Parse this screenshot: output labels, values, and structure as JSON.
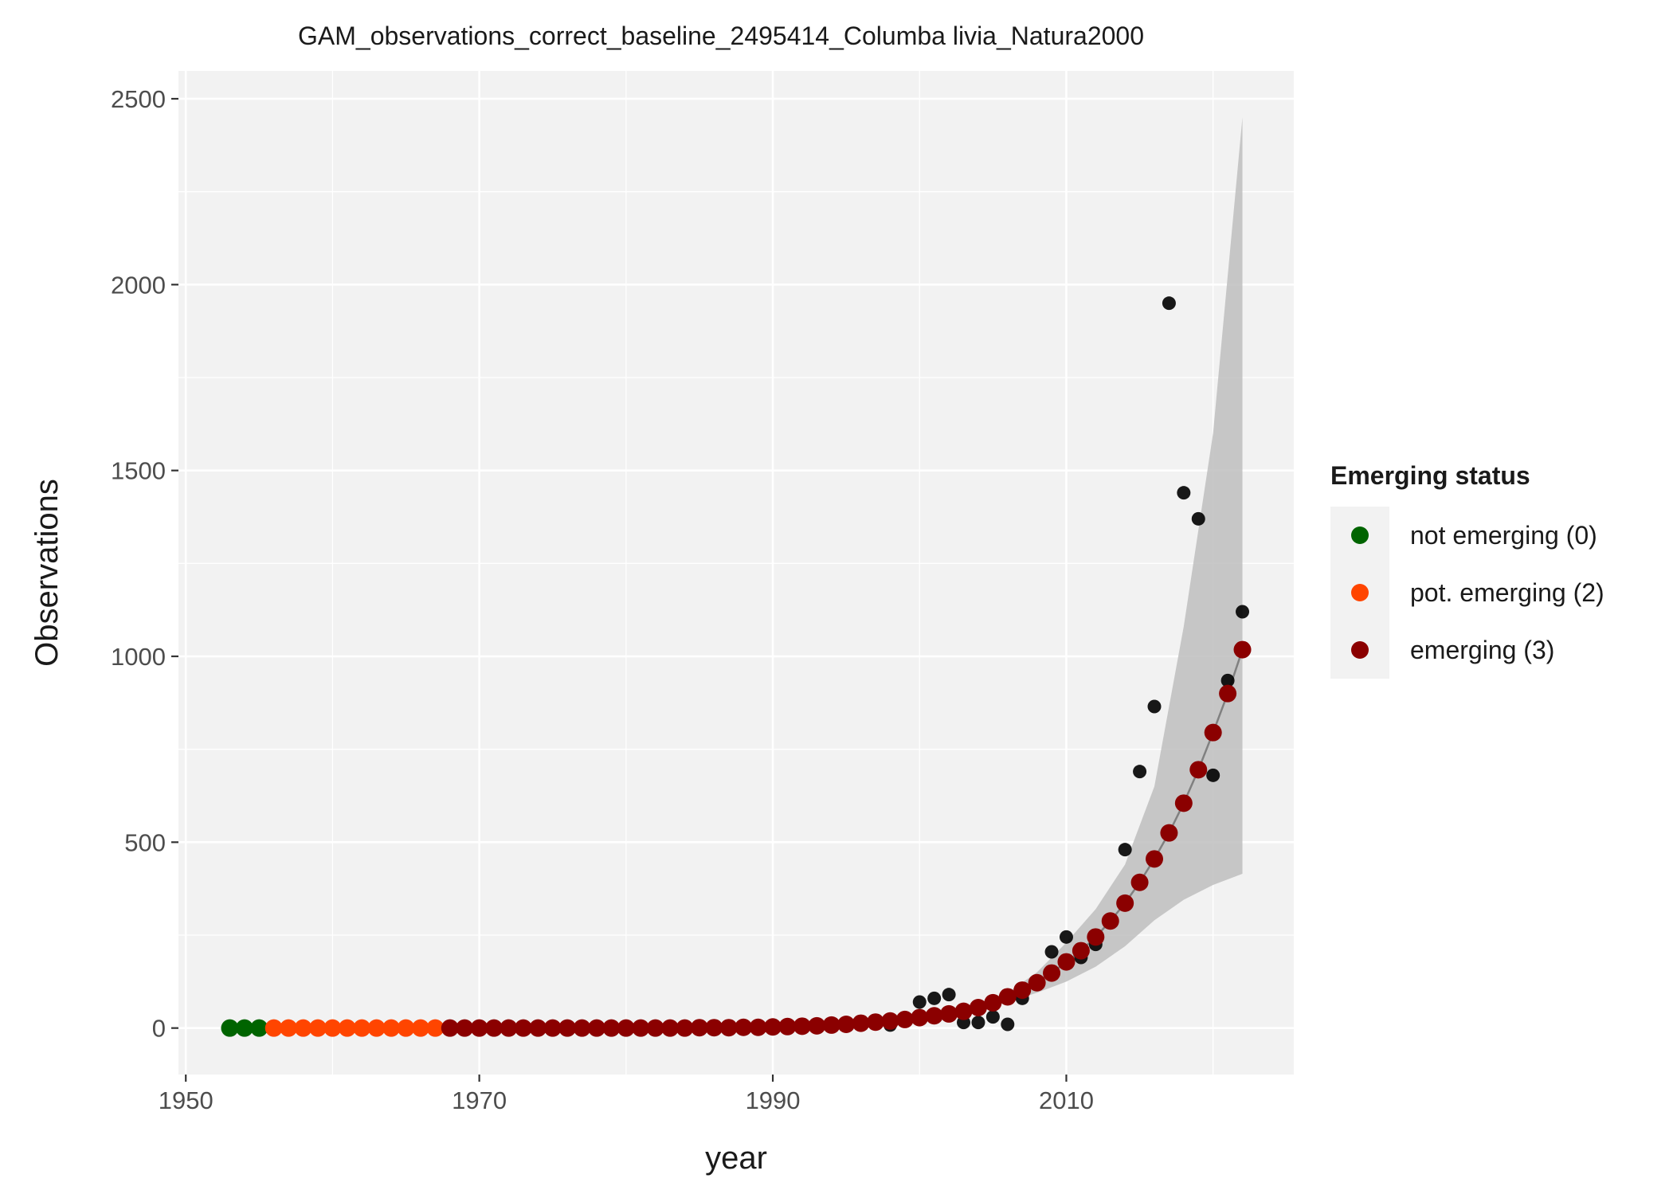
{
  "chart_data": {
    "type": "scatter",
    "title": "GAM_observations_correct_baseline_2495414_Columba livia_Natura2000",
    "xlabel": "year",
    "ylabel": "Observations",
    "xlim": [
      1949.5,
      2025.5
    ],
    "ylim": [
      -125,
      2575
    ],
    "x_ticks": [
      1950,
      1970,
      1990,
      2010
    ],
    "x_tick_labels": [
      "1950",
      "1970",
      "1990",
      "2010"
    ],
    "y_ticks": [
      0,
      500,
      1000,
      1500,
      2000,
      2500
    ],
    "y_tick_labels": [
      "0",
      "500",
      "1000",
      "1500",
      "2000",
      "2500"
    ],
    "grid": true,
    "legend": {
      "title": "Emerging status",
      "position": "right",
      "entries": [
        {
          "label": "not emerging (0)",
          "color": "#006400"
        },
        {
          "label": "pot. emerging (2)",
          "color": "#FF4500"
        },
        {
          "label": "emerging (3)",
          "color": "#8B0000"
        }
      ]
    },
    "colors": {
      "panel_bg": "#F2F2F2",
      "grid": "#FFFFFF",
      "ribbon": "#BEBEBE",
      "fit_line": "#808080",
      "observed": "#000000"
    },
    "observed": {
      "name": "observations",
      "x": [
        1998,
        2000,
        2001,
        2002,
        2003,
        2004,
        2005,
        2006,
        2007,
        2009,
        2010,
        2011,
        2012,
        2014,
        2015,
        2016,
        2017,
        2018,
        2019,
        2020,
        2021,
        2022
      ],
      "y": [
        8,
        70,
        80,
        90,
        15,
        15,
        30,
        10,
        80,
        205,
        245,
        190,
        225,
        480,
        690,
        865,
        1950,
        1440,
        1370,
        680,
        935,
        1120
      ]
    },
    "fit": {
      "x": [
        1953,
        1954,
        1955,
        1956,
        1957,
        1958,
        1959,
        1960,
        1961,
        1962,
        1963,
        1964,
        1965,
        1966,
        1967,
        1968,
        1969,
        1970,
        1971,
        1972,
        1973,
        1974,
        1975,
        1976,
        1977,
        1978,
        1979,
        1980,
        1981,
        1982,
        1983,
        1984,
        1985,
        1986,
        1987,
        1988,
        1989,
        1990,
        1991,
        1992,
        1993,
        1994,
        1995,
        1996,
        1997,
        1998,
        1999,
        2000,
        2001,
        2002,
        2003,
        2004,
        2005,
        2006,
        2007,
        2008,
        2009,
        2010,
        2011,
        2012,
        2013,
        2014,
        2015,
        2016,
        2017,
        2018,
        2019,
        2020,
        2021,
        2022
      ],
      "y": [
        0,
        0,
        0,
        0,
        0,
        0,
        0,
        0,
        0,
        0,
        0,
        0,
        0,
        0,
        0,
        0,
        0,
        0,
        0,
        0,
        0,
        0,
        0,
        0,
        0,
        0,
        0,
        0,
        0,
        0,
        0,
        0,
        1,
        1,
        1,
        2,
        2,
        3,
        4,
        5,
        6,
        8,
        10,
        13,
        16,
        19,
        23,
        28,
        33,
        38,
        45,
        55,
        68,
        84,
        102,
        122,
        148,
        178,
        208,
        245,
        288,
        336,
        392,
        455,
        525,
        605,
        695,
        795,
        900,
        1018
      ],
      "status": [
        0,
        0,
        0,
        2,
        2,
        2,
        2,
        2,
        2,
        2,
        2,
        2,
        2,
        2,
        2,
        3,
        3,
        3,
        3,
        3,
        3,
        3,
        3,
        3,
        3,
        3,
        3,
        3,
        3,
        3,
        3,
        3,
        3,
        3,
        3,
        3,
        3,
        3,
        3,
        3,
        3,
        3,
        3,
        3,
        3,
        3,
        3,
        3,
        3,
        3,
        3,
        3,
        3,
        3,
        3,
        3,
        3,
        3,
        3,
        3,
        3,
        3,
        3,
        3,
        3,
        3,
        3,
        3,
        3,
        3
      ]
    },
    "ribbon": {
      "x": [
        2000,
        2002,
        2004,
        2006,
        2008,
        2010,
        2012,
        2014,
        2016,
        2018,
        2020,
        2022
      ],
      "lower": [
        20,
        30,
        45,
        70,
        95,
        125,
        165,
        220,
        290,
        345,
        385,
        415
      ],
      "upper": [
        28,
        45,
        65,
        95,
        150,
        230,
        320,
        440,
        650,
        1080,
        1600,
        2450
      ]
    }
  }
}
